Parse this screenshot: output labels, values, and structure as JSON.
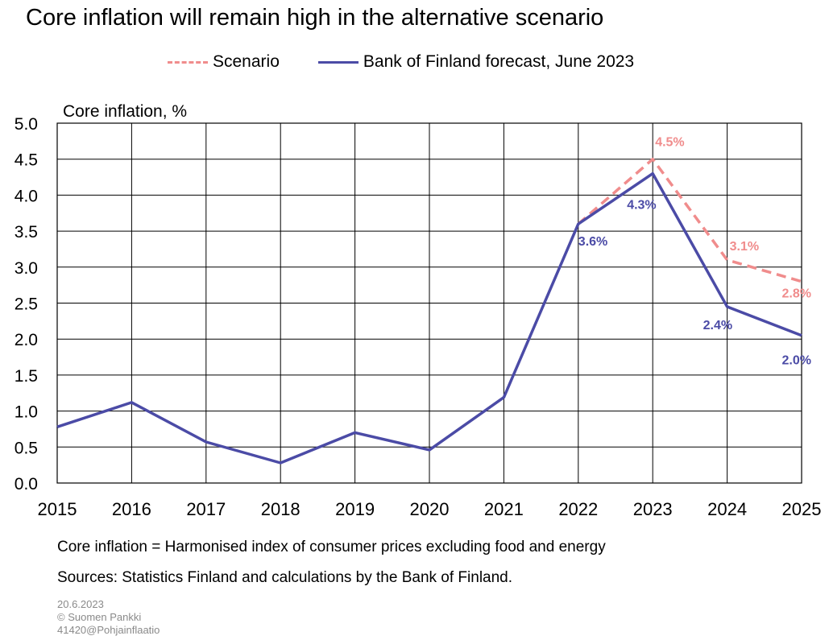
{
  "title": "Core inflation will remain high in the alternative scenario",
  "notes": {
    "definition": "Core inflation = Harmonised index of consumer prices excluding food and energy",
    "sources": "Sources: Statistics Finland and calculations by the Bank of Finland."
  },
  "meta": {
    "date": "20.6.2023",
    "copyright": "© Suomen Pankki",
    "id": "41420@Pohjainflaatio"
  },
  "chart_data": {
    "type": "line",
    "ylabel": "Core inflation, %",
    "xlabel": "",
    "x": [
      "2015",
      "2016",
      "2017",
      "2018",
      "2019",
      "2020",
      "2021",
      "2022",
      "2023",
      "2024",
      "2025"
    ],
    "ylim": [
      0,
      5
    ],
    "yticks": [
      "0.0",
      "0.5",
      "1.0",
      "1.5",
      "2.0",
      "2.5",
      "3.0",
      "3.5",
      "4.0",
      "4.5",
      "5.0"
    ],
    "grid": true,
    "legend_position": "top",
    "series": [
      {
        "name": "Scenario",
        "style": "dashed",
        "color": "#f08c8c",
        "x": [
          "2022",
          "2023",
          "2024",
          "2025"
        ],
        "values": [
          3.6,
          4.5,
          3.1,
          2.8
        ],
        "labels": [
          "4.5%",
          "3.1%",
          "2.8%"
        ]
      },
      {
        "name": "Bank of Finland forecast, June 2023",
        "style": "solid",
        "color": "#4b4ba6",
        "x": [
          "2015",
          "2016",
          "2017",
          "2018",
          "2019",
          "2020",
          "2021",
          "2022",
          "2023",
          "2024",
          "2025"
        ],
        "values": [
          0.78,
          1.12,
          0.57,
          0.28,
          0.7,
          0.46,
          1.19,
          3.6,
          4.3,
          2.45,
          2.05
        ],
        "labels": [
          "3.6%",
          "4.3%",
          "2.4%",
          "2.0%"
        ]
      }
    ]
  }
}
